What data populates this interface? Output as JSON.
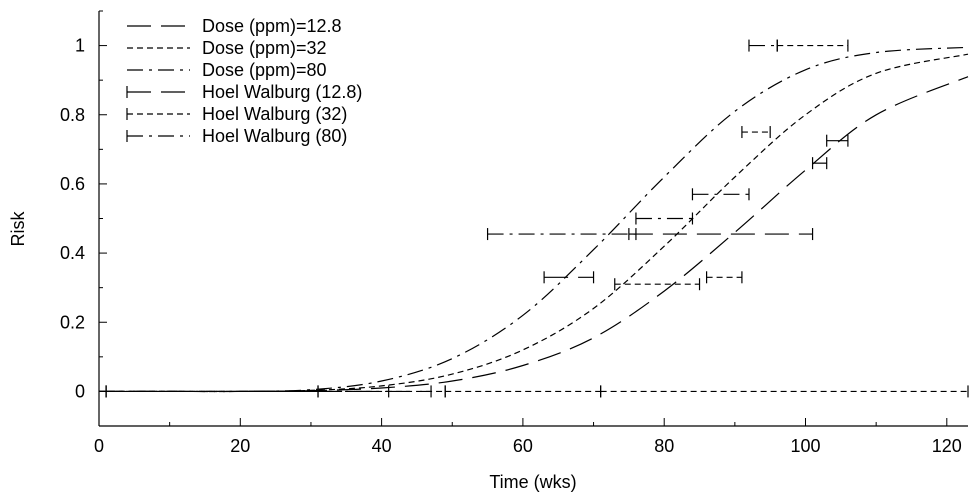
{
  "chart_data": {
    "type": "line",
    "xlabel": "Time (wks)",
    "ylabel": "Risk",
    "xlim": [
      0,
      123
    ],
    "ylim": [
      -0.1,
      1.1
    ],
    "xticks": [
      0,
      20,
      40,
      60,
      80,
      100,
      120
    ],
    "yticks": [
      0,
      0.2,
      0.4,
      0.6,
      0.8,
      1
    ],
    "xtick_labels": [
      "0",
      "20",
      "40",
      "60",
      "80",
      "100",
      "120"
    ],
    "ytick_labels": [
      "0",
      "0.2",
      "0.4",
      "0.6",
      "0.8",
      "1"
    ],
    "legend_position": "top-left",
    "grid": false,
    "series": [
      {
        "name": "Dose (ppm)=12.8",
        "style": "long-dash",
        "x": [
          0,
          10,
          20,
          30,
          40,
          50,
          60,
          70,
          80,
          90,
          100,
          110,
          123
        ],
        "y": [
          0,
          0,
          0,
          0.002,
          0.01,
          0.03,
          0.075,
          0.155,
          0.29,
          0.46,
          0.64,
          0.8,
          0.91
        ]
      },
      {
        "name": "Dose (ppm)=32",
        "style": "short-dash",
        "x": [
          0,
          10,
          20,
          30,
          40,
          50,
          60,
          70,
          80,
          90,
          100,
          110,
          123
        ],
        "y": [
          0,
          0,
          0,
          0.003,
          0.016,
          0.05,
          0.12,
          0.24,
          0.42,
          0.62,
          0.8,
          0.92,
          0.975
        ]
      },
      {
        "name": "Dose (ppm)=80",
        "style": "dash-dot",
        "x": [
          0,
          10,
          20,
          30,
          40,
          50,
          60,
          70,
          80,
          90,
          100,
          110,
          123
        ],
        "y": [
          0,
          0,
          0,
          0.005,
          0.03,
          0.095,
          0.22,
          0.41,
          0.62,
          0.81,
          0.93,
          0.98,
          0.995
        ]
      }
    ],
    "intervals": [
      {
        "name": "Hoel Walburg (12.8)",
        "style": "long-dash",
        "segments": [
          {
            "x0": 1,
            "x1": 31,
            "y": 0
          },
          {
            "x0": 31,
            "x1": 47,
            "y": 0
          },
          {
            "x0": 63,
            "x1": 70,
            "y": 0.33
          },
          {
            "x0": 75,
            "x1": 101,
            "y": 0.455
          },
          {
            "x0": 101,
            "x1": 103,
            "y": 0.66
          },
          {
            "x0": 103,
            "x1": 106,
            "y": 0.725
          }
        ]
      },
      {
        "name": "Hoel Walburg (32)",
        "style": "short-dash",
        "segments": [
          {
            "x0": 1,
            "x1": 49,
            "y": 0
          },
          {
            "x0": 49,
            "x1": 71,
            "y": 0
          },
          {
            "x0": 71,
            "x1": 123,
            "y": 0
          },
          {
            "x0": 73,
            "x1": 85,
            "y": 0.31
          },
          {
            "x0": 86,
            "x1": 91,
            "y": 0.33
          },
          {
            "x0": 91,
            "x1": 95,
            "y": 0.75
          },
          {
            "x0": 96,
            "x1": 106,
            "y": 1.0
          }
        ]
      },
      {
        "name": "Hoel Walburg (80)",
        "style": "dash-dot",
        "segments": [
          {
            "x0": 1,
            "x1": 41,
            "y": 0
          },
          {
            "x0": 55,
            "x1": 76,
            "y": 0.455
          },
          {
            "x0": 76,
            "x1": 84,
            "y": 0.5
          },
          {
            "x0": 84,
            "x1": 92,
            "y": 0.57
          },
          {
            "x0": 92,
            "x1": 96,
            "y": 1.0
          }
        ]
      }
    ],
    "legend": [
      {
        "label": "Dose (ppm)=12.8",
        "style": "long-dash",
        "endcap": false
      },
      {
        "label": "Dose (ppm)=32",
        "style": "short-dash",
        "endcap": false
      },
      {
        "label": "Dose (ppm)=80",
        "style": "dash-dot",
        "endcap": false
      },
      {
        "label": "Hoel Walburg (12.8)",
        "style": "long-dash",
        "endcap": true
      },
      {
        "label": "Hoel Walburg (32)",
        "style": "short-dash",
        "endcap": true
      },
      {
        "label": "Hoel Walburg (80)",
        "style": "dash-dot",
        "endcap": true
      }
    ]
  }
}
